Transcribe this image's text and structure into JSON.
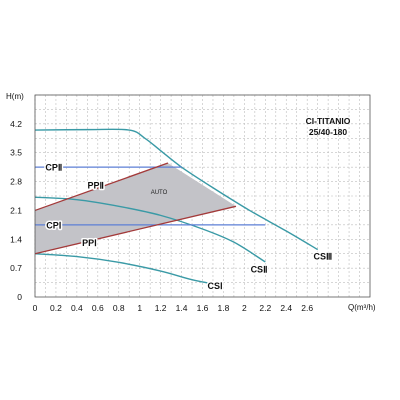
{
  "chart_data": {
    "type": "line",
    "title": "CI-TITANIO\n25/40-180",
    "xlabel": "Q(m³/h)",
    "ylabel": "H(m)",
    "xlim": [
      0,
      3.2
    ],
    "ylim": [
      0,
      4.9
    ],
    "x_ticks": [
      "0",
      "0.2",
      "0.4",
      "0.6",
      "0.8",
      "1",
      "1.2",
      "1.4",
      "1.6",
      "1.8",
      "2",
      "2.2",
      "2.4",
      "2.6"
    ],
    "y_ticks": [
      "0",
      "0.7",
      "1.4",
      "2.1",
      "2.8",
      "3.5",
      "4.2"
    ],
    "grid": true,
    "auto_region": {
      "label": "AUTO",
      "color": "#c3c3c8",
      "polygon": [
        [
          0,
          2.1
        ],
        [
          1.27,
          3.25
        ],
        [
          1.92,
          2.2
        ],
        [
          0,
          1.05
        ]
      ]
    },
    "series": [
      {
        "name": "CSⅢ",
        "color": "#3a9aa6",
        "style": "curve",
        "points": [
          [
            0,
            4.05
          ],
          [
            0.5,
            4.06
          ],
          [
            0.9,
            4.05
          ],
          [
            1.05,
            3.85
          ],
          [
            1.2,
            3.55
          ],
          [
            1.4,
            3.15
          ],
          [
            1.7,
            2.65
          ],
          [
            2.05,
            2.1
          ],
          [
            2.4,
            1.6
          ],
          [
            2.7,
            1.15
          ]
        ]
      },
      {
        "name": "CSⅡ",
        "color": "#3a9aa6",
        "style": "curve",
        "points": [
          [
            0,
            2.42
          ],
          [
            0.4,
            2.36
          ],
          [
            0.8,
            2.2
          ],
          [
            1.2,
            1.98
          ],
          [
            1.6,
            1.65
          ],
          [
            1.9,
            1.33
          ],
          [
            2.2,
            0.85
          ]
        ]
      },
      {
        "name": "CSⅠ",
        "color": "#3a9aa6",
        "style": "curve",
        "points": [
          [
            0,
            1.05
          ],
          [
            0.4,
            0.98
          ],
          [
            0.8,
            0.84
          ],
          [
            1.2,
            0.63
          ],
          [
            1.5,
            0.42
          ],
          [
            1.78,
            0.28
          ]
        ]
      },
      {
        "name": "CPⅡ",
        "color": "#5c7fd6",
        "style": "line",
        "points": [
          [
            0,
            3.15
          ],
          [
            1.4,
            3.15
          ]
        ]
      },
      {
        "name": "CPⅠ",
        "color": "#5c7fd6",
        "style": "line",
        "points": [
          [
            0,
            1.75
          ],
          [
            2.2,
            1.75
          ]
        ]
      },
      {
        "name": "PPⅡ",
        "color": "#a33a3a",
        "style": "line",
        "points": [
          [
            0,
            2.1
          ],
          [
            1.27,
            3.25
          ]
        ]
      },
      {
        "name": "PPⅠ",
        "color": "#a33a3a",
        "style": "line",
        "points": [
          [
            0,
            1.05
          ],
          [
            1.92,
            2.2
          ]
        ]
      }
    ],
    "curve_labels": [
      {
        "series": "CPⅡ",
        "text": "CPⅡ",
        "x": 0.18,
        "y": 3.15
      },
      {
        "series": "CPⅠ",
        "text": "CPⅠ",
        "x": 0.18,
        "y": 1.75
      },
      {
        "series": "PPⅡ",
        "text": "PPⅡ",
        "x": 0.58,
        "y": 2.72
      },
      {
        "series": "PPⅠ",
        "text": "PPⅠ",
        "x": 0.52,
        "y": 1.32
      },
      {
        "series": "CSⅠ",
        "text": "CSⅠ",
        "x": 1.72,
        "y": 0.28
      },
      {
        "series": "CSⅡ",
        "text": "CSⅡ",
        "x": 2.14,
        "y": 0.68
      },
      {
        "series": "CSⅢ",
        "text": "CSⅢ",
        "x": 2.75,
        "y": 1.0
      }
    ]
  }
}
